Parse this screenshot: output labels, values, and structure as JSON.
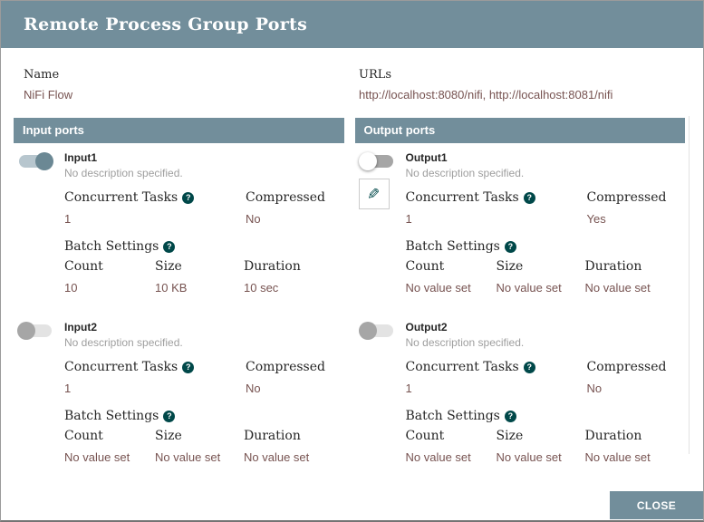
{
  "title": "Remote Process Group Ports",
  "properties": {
    "name": {
      "label": "Name",
      "value": "NiFi Flow"
    },
    "urls": {
      "label": "URLs",
      "value": "http://localhost:8080/nifi, http://localhost:8081/nifi"
    }
  },
  "labels": {
    "concurrent_tasks": "Concurrent Tasks",
    "compressed": "Compressed",
    "batch_settings": "Batch Settings",
    "count": "Count",
    "size": "Size",
    "duration": "Duration"
  },
  "icons": {
    "help_glyph": "?",
    "edit_glyph": "✎"
  },
  "columns": [
    {
      "header": "Input ports",
      "ports": [
        {
          "name": "Input1",
          "description": "No description specified.",
          "toggle_state": "on",
          "concurrent_tasks": "1",
          "compressed": "No",
          "batch": {
            "count": "10",
            "size": "10 KB",
            "duration": "10 sec"
          }
        },
        {
          "name": "Input2",
          "description": "No description specified.",
          "toggle_state": "off-disabled",
          "concurrent_tasks": "1",
          "compressed": "No",
          "batch": {
            "count": "No value set",
            "size": "No value set",
            "duration": "No value set"
          }
        }
      ]
    },
    {
      "header": "Output ports",
      "ports": [
        {
          "name": "Output1",
          "description": "No description specified.",
          "toggle_state": "off",
          "concurrent_tasks": "1",
          "compressed": "Yes",
          "batch": {
            "count": "No value set",
            "size": "No value set",
            "duration": "No value set"
          }
        },
        {
          "name": "Output2",
          "description": "No description specified.",
          "toggle_state": "off-disabled",
          "concurrent_tasks": "1",
          "compressed": "No",
          "batch": {
            "count": "No value set",
            "size": "No value set",
            "duration": "No value set"
          }
        }
      ]
    }
  ],
  "footer": {
    "close_label": "CLOSE"
  },
  "colors": {
    "header_bg": "#728E9B",
    "value_text": "#775351",
    "teal": "#004849"
  }
}
